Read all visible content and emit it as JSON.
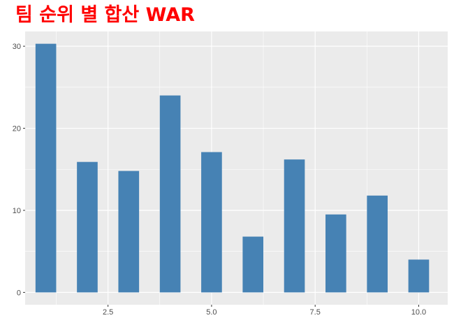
{
  "chart_data": {
    "type": "bar",
    "title": "팀 순위 별 합산 WAR",
    "xlabel": "",
    "ylabel": "",
    "x": [
      1,
      2,
      3,
      4,
      5,
      6,
      7,
      8,
      9,
      10
    ],
    "values": [
      30.3,
      15.9,
      14.8,
      24.0,
      17.1,
      6.8,
      16.2,
      9.5,
      11.8,
      4.0
    ],
    "xlim": [
      0.5,
      10.7
    ],
    "ylim": [
      -1.5,
      31.8
    ],
    "x_ticks": [
      2.5,
      5.0,
      7.5,
      10.0
    ],
    "x_tick_labels": [
      "2.5",
      "5.0",
      "7.5",
      "10.0"
    ],
    "y_ticks": [
      0,
      10,
      20,
      30
    ],
    "y_tick_labels": [
      "0",
      "10",
      "20",
      "30"
    ],
    "grid": true,
    "legend": "none",
    "bar_color": "#4682b4",
    "panel_color": "#ebebeb",
    "title_color": "#ff0000"
  }
}
